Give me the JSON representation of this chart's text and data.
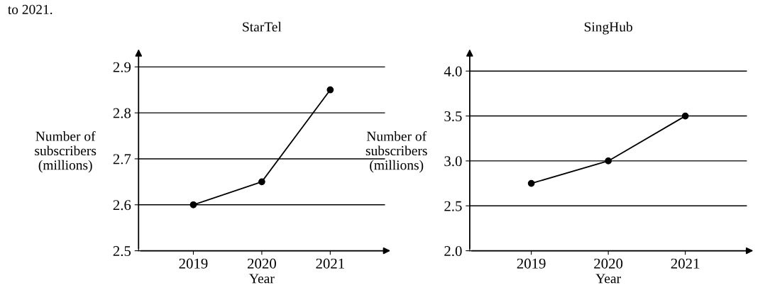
{
  "chart_data": [
    {
      "type": "line",
      "title": "StarTel",
      "xlabel": "Year",
      "ylabel": "Number of\nsubscribers\n(millions)",
      "annotations": [
        "to 2021."
      ],
      "categories": [
        "2019",
        "2020",
        "2021"
      ],
      "series": [
        {
          "color": "#000000",
          "values": [
            2.6,
            2.65,
            2.85
          ]
        }
      ],
      "ylim": [
        2.5,
        2.93
      ],
      "yticks": [
        2.5,
        2.6,
        2.7,
        2.8,
        2.9
      ],
      "grid": "y",
      "marker": "circle",
      "line_style": "solid",
      "legend": false
    },
    {
      "type": "line",
      "title": "SingHub",
      "xlabel": "Year",
      "ylabel": "Number of\nsubscribers\n(millions)",
      "categories": [
        "2019",
        "2020",
        "2021"
      ],
      "series": [
        {
          "color": "#000000",
          "values": [
            2.75,
            3.0,
            3.5
          ]
        }
      ],
      "ylim": [
        2.0,
        4.2
      ],
      "yticks": [
        {
          "value": 2.0,
          "label": "2.0"
        },
        2.5,
        {
          "value": 3.0,
          "label": "3.0"
        },
        3.5,
        {
          "value": 4.0,
          "label": "4.0"
        }
      ],
      "grid": "y",
      "marker": "circle",
      "line_style": "solid",
      "legend": false
    }
  ]
}
